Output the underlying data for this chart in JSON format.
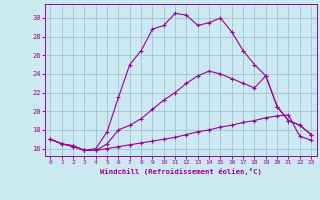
{
  "xlabel": "Windchill (Refroidissement éolien,°C)",
  "bg_color": "#cce8f0",
  "grid_color": "#99bbc8",
  "line_color": "#990099",
  "x_ticks": [
    0,
    1,
    2,
    3,
    4,
    5,
    6,
    7,
    8,
    9,
    10,
    11,
    12,
    13,
    14,
    15,
    16,
    17,
    18,
    19,
    20,
    21,
    22,
    23
  ],
  "y_ticks": [
    16,
    18,
    20,
    22,
    24,
    26,
    28,
    30
  ],
  "xlim": [
    -0.5,
    23.5
  ],
  "ylim": [
    15.2,
    31.5
  ],
  "line1_x": [
    0,
    1,
    2,
    3,
    4,
    5,
    6,
    7,
    8,
    9,
    10,
    11,
    12,
    13,
    14,
    15,
    16,
    17,
    18,
    19,
    20,
    21,
    22,
    23
  ],
  "line1_y": [
    17.0,
    16.5,
    16.3,
    15.8,
    15.8,
    16.0,
    16.2,
    16.4,
    16.6,
    16.8,
    17.0,
    17.2,
    17.5,
    17.8,
    18.0,
    18.3,
    18.5,
    18.8,
    19.0,
    19.3,
    19.5,
    19.6,
    17.3,
    16.9
  ],
  "line2_x": [
    0,
    1,
    2,
    3,
    4,
    5,
    6,
    7,
    8,
    9,
    10,
    11,
    12,
    13,
    14,
    15,
    16,
    17,
    18,
    19,
    20,
    21,
    22,
    23
  ],
  "line2_y": [
    17.0,
    16.5,
    16.3,
    15.8,
    15.8,
    16.5,
    18.0,
    18.5,
    19.2,
    20.2,
    21.2,
    22.0,
    23.0,
    23.8,
    24.3,
    24.0,
    23.5,
    23.0,
    22.5,
    23.8,
    20.5,
    19.0,
    18.5,
    17.5
  ],
  "line3_x": [
    0,
    1,
    2,
    3,
    4,
    5,
    6,
    7,
    8,
    9,
    10,
    11,
    12,
    13,
    14,
    15,
    16,
    17,
    18,
    19,
    20,
    21,
    22,
    23
  ],
  "line3_y": [
    17.0,
    16.5,
    16.2,
    15.8,
    16.0,
    17.8,
    21.5,
    25.0,
    26.5,
    28.8,
    29.2,
    30.5,
    30.3,
    29.2,
    29.5,
    30.0,
    28.5,
    26.5,
    25.0,
    23.8,
    20.5,
    19.0,
    18.5,
    17.5
  ]
}
